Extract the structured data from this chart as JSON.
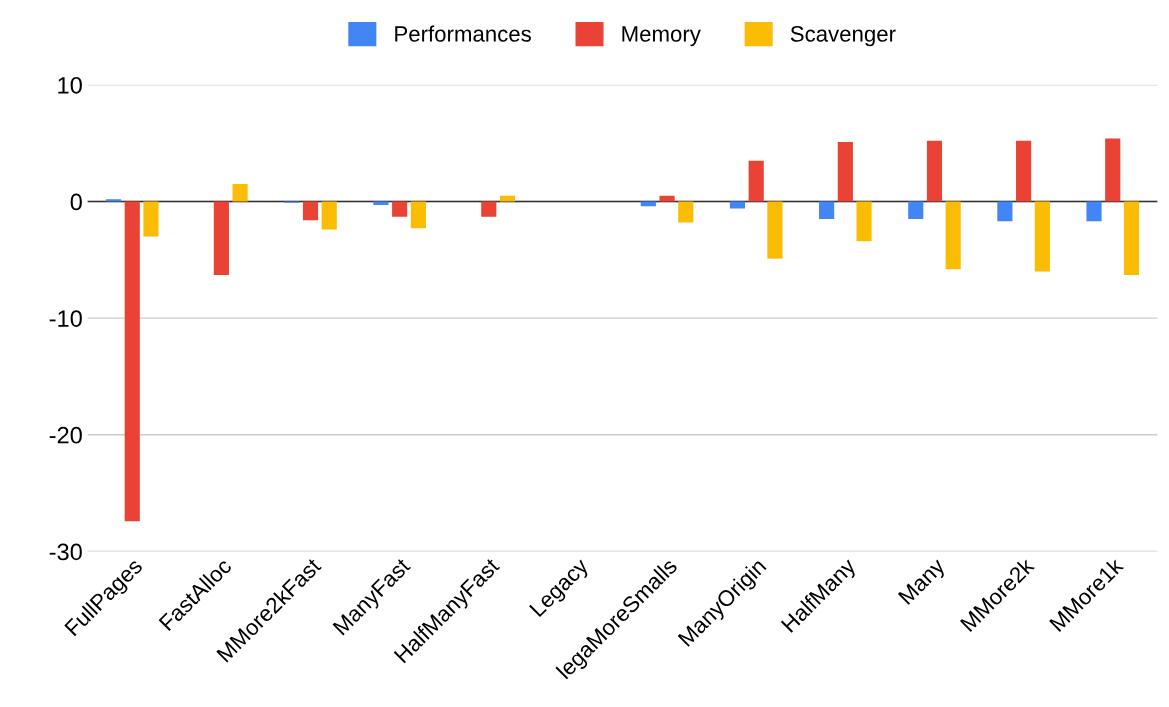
{
  "chart_data": {
    "type": "bar",
    "categories": [
      "FullPages",
      "FastAlloc",
      "MMore2kFast",
      "ManyFast",
      "HalfManyFast",
      "Legacy",
      "legaMoreSmalls",
      "ManyOrigin",
      "HalfMany",
      "Many",
      "MMore2k",
      "MMore1k"
    ],
    "series": [
      {
        "name": "Performances",
        "color": "#4285f4",
        "values": [
          0.2,
          0,
          -0.1,
          -0.3,
          0,
          0,
          -0.4,
          -0.6,
          -1.5,
          -1.5,
          -1.7,
          -1.7
        ]
      },
      {
        "name": "Memory",
        "color": "#ea4335",
        "values": [
          -27.4,
          -6.3,
          -1.6,
          -1.3,
          -1.3,
          0,
          0.5,
          3.5,
          5.1,
          5.2,
          5.2,
          5.4
        ]
      },
      {
        "name": "Scavenger",
        "color": "#fbbc04",
        "values": [
          -3.0,
          1.5,
          -2.4,
          -2.3,
          0.5,
          0,
          -1.8,
          -4.9,
          -3.4,
          -5.8,
          -6.0,
          -6.3
        ]
      }
    ],
    "ylim": [
      -30,
      10
    ],
    "yticks": [
      -30,
      -20,
      -10,
      0,
      10
    ],
    "grid": "y",
    "legend": "top"
  }
}
